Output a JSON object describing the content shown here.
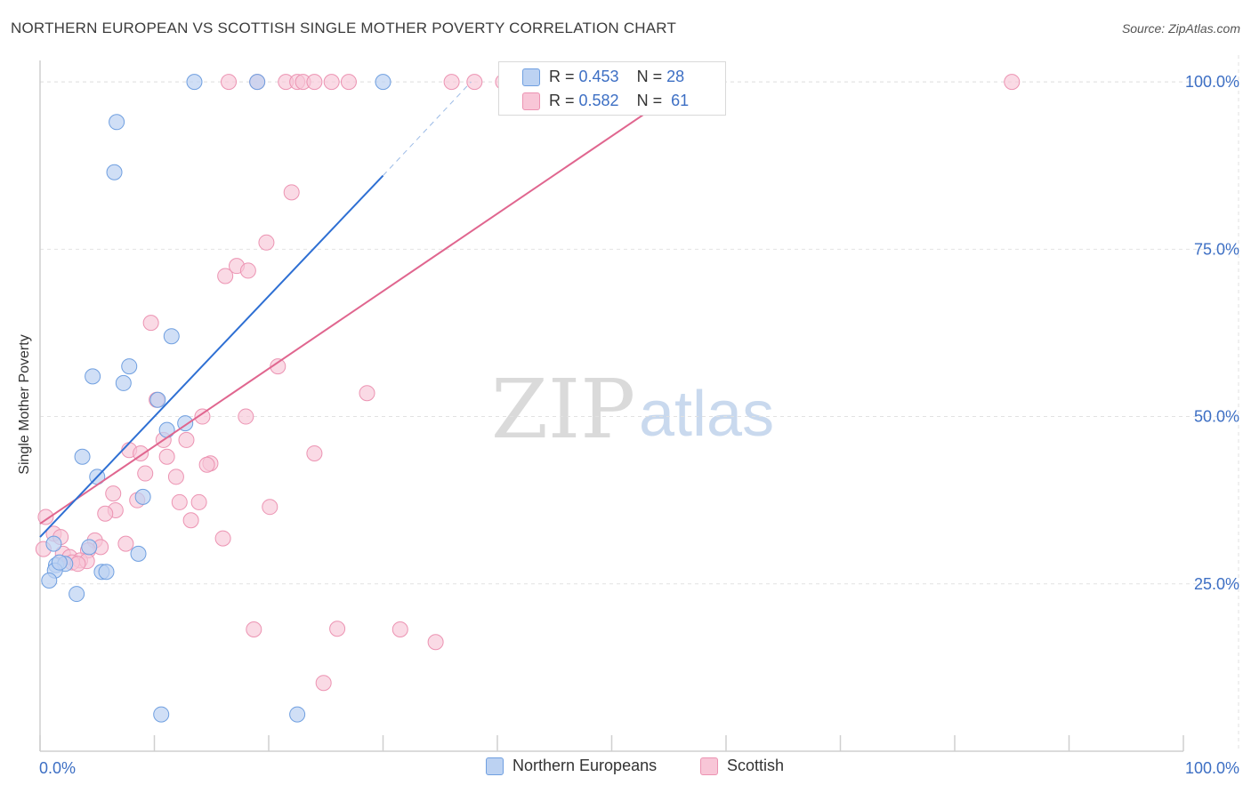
{
  "title": "NORTHERN EUROPEAN VS SCOTTISH SINGLE MOTHER POVERTY CORRELATION CHART",
  "source": "Source: ZipAtlas.com",
  "watermark": {
    "zip": "ZIP",
    "atlas": "atlas"
  },
  "chart_data": {
    "type": "scatter",
    "title": "NORTHERN EUROPEAN VS SCOTTISH SINGLE MOTHER POVERTY CORRELATION CHART",
    "xlabel": "",
    "ylabel": "Single Mother Poverty",
    "xlim": [
      0,
      100
    ],
    "ylim": [
      0,
      104
    ],
    "x_tick_labels": [
      "0.0%",
      "100.0%"
    ],
    "y_ticks": [
      25,
      50,
      75,
      100
    ],
    "y_tick_labels": [
      "25.0%",
      "50.0%",
      "75.0%",
      "100.0%"
    ],
    "grid": true,
    "legend_position": "bottom-center",
    "colors": {
      "northern": "#6f9fe0",
      "scottish": "#ec93b2",
      "northern_line": "#2e6fd3",
      "scottish_line": "#e0668f",
      "accent_text": "#3d6fc4"
    },
    "series": [
      {
        "name": "Northern Europeans",
        "R": "0.453",
        "N": "28",
        "trend": {
          "x": [
            0,
            30
          ],
          "y": [
            32,
            86
          ],
          "dashed_to": [
            37.7,
            100
          ]
        },
        "points": [
          [
            13.5,
            100
          ],
          [
            19,
            100
          ],
          [
            30,
            100
          ],
          [
            6.7,
            94
          ],
          [
            6.5,
            86.5
          ],
          [
            11.5,
            62
          ],
          [
            4.6,
            56
          ],
          [
            7.8,
            57.5
          ],
          [
            7.3,
            55
          ],
          [
            10.3,
            52.5
          ],
          [
            12.7,
            49
          ],
          [
            11.1,
            48
          ],
          [
            3.7,
            44
          ],
          [
            5,
            41
          ],
          [
            9,
            38
          ],
          [
            1.2,
            31
          ],
          [
            4.3,
            30.5
          ],
          [
            8.6,
            29.5
          ],
          [
            1.4,
            27.8
          ],
          [
            2.2,
            28
          ],
          [
            1.3,
            27
          ],
          [
            5.4,
            26.8
          ],
          [
            5.8,
            26.8
          ],
          [
            0.8,
            25.5
          ],
          [
            3.2,
            23.5
          ],
          [
            10.6,
            5.5
          ],
          [
            22.5,
            5.5
          ],
          [
            1.7,
            28.2
          ]
        ]
      },
      {
        "name": "Scottish",
        "R": "0.582",
        "N": "61",
        "trend": {
          "x": [
            0,
            57
          ],
          "y": [
            34,
            100
          ]
        },
        "points": [
          [
            16.5,
            100
          ],
          [
            19,
            100
          ],
          [
            21.5,
            100
          ],
          [
            22.5,
            100
          ],
          [
            23,
            100
          ],
          [
            24,
            100
          ],
          [
            25.5,
            100
          ],
          [
            27,
            100
          ],
          [
            36,
            100
          ],
          [
            38,
            100
          ],
          [
            40.5,
            100
          ],
          [
            85,
            100
          ],
          [
            22,
            83.5
          ],
          [
            19.8,
            76
          ],
          [
            17.2,
            72.5
          ],
          [
            18.2,
            71.8
          ],
          [
            16.2,
            71
          ],
          [
            9.7,
            64
          ],
          [
            20.8,
            57.5
          ],
          [
            28.6,
            53.5
          ],
          [
            10.2,
            52.5
          ],
          [
            14.2,
            50
          ],
          [
            18,
            50
          ],
          [
            10.8,
            46.5
          ],
          [
            12.8,
            46.5
          ],
          [
            7.8,
            45
          ],
          [
            8.8,
            44.5
          ],
          [
            11.1,
            44
          ],
          [
            24,
            44.5
          ],
          [
            14.9,
            43
          ],
          [
            14.6,
            42.8
          ],
          [
            9.2,
            41.5
          ],
          [
            11.9,
            41
          ],
          [
            6.4,
            38.5
          ],
          [
            8.5,
            37.5
          ],
          [
            12.2,
            37.2
          ],
          [
            13.9,
            37.2
          ],
          [
            20.1,
            36.5
          ],
          [
            6.6,
            36
          ],
          [
            5.7,
            35.5
          ],
          [
            13.2,
            34.5
          ],
          [
            0.5,
            35
          ],
          [
            1.2,
            32.5
          ],
          [
            1.8,
            32
          ],
          [
            16,
            31.8
          ],
          [
            4.8,
            31.5
          ],
          [
            7.5,
            31
          ],
          [
            5.3,
            30.5
          ],
          [
            4.2,
            30
          ],
          [
            2,
            29.5
          ],
          [
            2.6,
            29
          ],
          [
            3.5,
            28.5
          ],
          [
            4.1,
            28.4
          ],
          [
            2.8,
            28.2
          ],
          [
            3.3,
            28
          ],
          [
            18.7,
            18.2
          ],
          [
            26,
            18.3
          ],
          [
            31.5,
            18.2
          ],
          [
            34.6,
            16.3
          ],
          [
            24.8,
            10.2
          ],
          [
            0.3,
            30.2
          ]
        ]
      }
    ]
  }
}
